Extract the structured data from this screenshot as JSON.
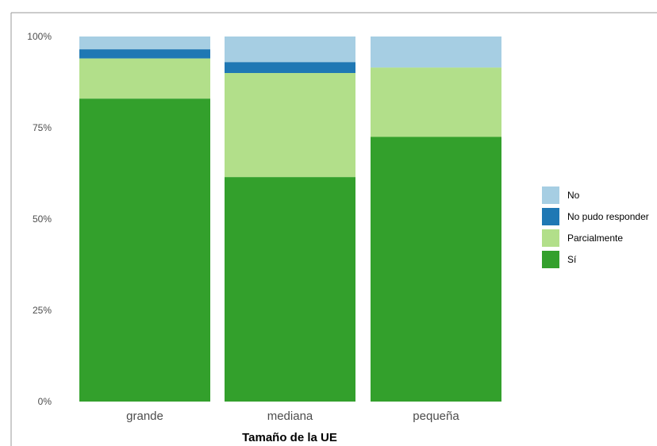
{
  "chart_data": {
    "type": "bar",
    "stacked": true,
    "categories": [
      "grande",
      "mediana",
      "pequeña"
    ],
    "series": [
      {
        "name": "Sí",
        "values": [
          83,
          61.5,
          72.5
        ]
      },
      {
        "name": "Parcialmente",
        "values": [
          11,
          28.5,
          19
        ]
      },
      {
        "name": "No pudo responder",
        "values": [
          2.5,
          3,
          0
        ]
      },
      {
        "name": "No",
        "values": [
          3.5,
          7,
          8.5
        ]
      }
    ],
    "xlabel": "Tamaño de la UE",
    "ylabel": "",
    "ylim": [
      0,
      100
    ],
    "yticks": [
      "0%",
      "25%",
      "50%",
      "75%",
      "100%"
    ],
    "legend_position": "right",
    "legend_order": [
      "No",
      "No pudo responder",
      "Parcialmente",
      "Sí"
    ],
    "grid": false
  },
  "colors": {
    "Sí": "#33a02c",
    "Parcialmente": "#b2df8a",
    "No pudo responder": "#1f78b4",
    "No": "#a6cee3"
  }
}
